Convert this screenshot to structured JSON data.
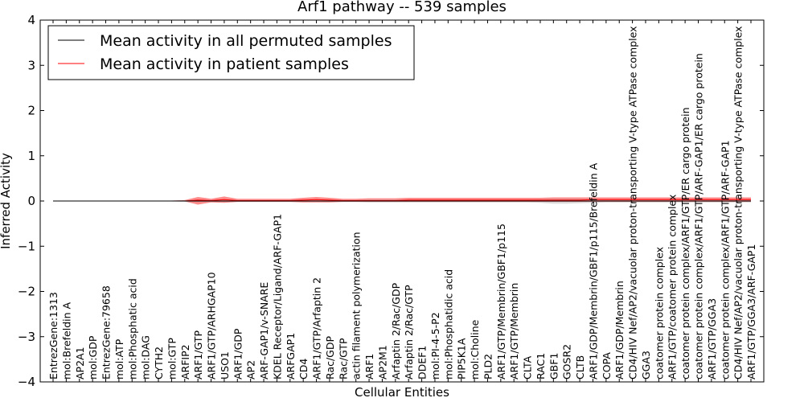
{
  "chart_data": {
    "type": "line",
    "title": "Arf1 pathway -- 539 samples",
    "xlabel": "Cellular Entities",
    "ylabel": "Inferred Activity",
    "ylim": [
      -4,
      4
    ],
    "yticks": [
      -4,
      -3,
      -2,
      -1,
      0,
      1,
      2,
      3,
      4
    ],
    "yticklabels": [
      "−4",
      "−3",
      "−2",
      "−1",
      "0",
      "1",
      "2",
      "3",
      "4"
    ],
    "grid": false,
    "legend_position": "top-left",
    "categories": [
      "EntrezGene:1313",
      "mol:Brefeldin A",
      "AP2A1",
      "mol:GDP",
      "EntrezGene:79658",
      "mol:ATP",
      "mol:Phosphatic acid",
      "mol:DAG",
      "CYTH2",
      "mol:GTP",
      "ARFIP2",
      "ARF1/GTP",
      "ARF1/GTP/ARHGAP10",
      "USO1",
      "ARF1/GDP",
      "AP2",
      "ARF-GAP1/v-SNARE",
      "KDEL Receptor/Ligand/ARF-GAP1",
      "ARFGAP1",
      "CD4",
      "ARF1/GTP/Arfaptin 2",
      "Rac/GDP",
      "Rac/GTP",
      "actin filament polymerization",
      "ARF1",
      "AP2M1",
      "Arfaptin 2/Rac/GDP",
      "Arfaptin 2/Rac/GTP",
      "DDEF1",
      "mol:PI-4-5-P2",
      "mol:Phosphatidic acid",
      "PIP5K1A",
      "mol:Choline",
      "PLD2",
      "ARF1/GTP/Membrin/GBF1/p115",
      "ARF1/GTP/Membrin",
      "CLTA",
      "RAC1",
      "GBF1",
      "GOSR2",
      "CLTB",
      "ARF1/GDP/Membrin/GBF1/p115/Brefeldin A",
      "COPA",
      "ARF1/GDP/Membrin",
      "CD4/HIV Nef/AP2/vacuolar proton-transporting V-type ATPase complex",
      "GGA3",
      "coatomer protein complex",
      "ARF1/GTP/coatomer protein complex",
      "coatomer protein complex/ARF1/GTP/ER cargo protein",
      "coatomer protein complex/ARF1/GTP/ARF-GAP1/ER cargo protein",
      "ARF1/GTP/GGA3",
      "coatomer protein complex/ARF1/GTP/ARF-GAP1",
      "CD4/HIV Nef/AP2/vacuolar proton-transporting V-type ATPase complex",
      "ARF1/GTP/GGA3/ARF-GAP1"
    ],
    "series": [
      {
        "name": "Mean activity in all permuted samples",
        "color": "#000000",
        "values": [
          0,
          0,
          0,
          0,
          0,
          0,
          0,
          0,
          0,
          0,
          0,
          0,
          0,
          0,
          0,
          0,
          0,
          0,
          0,
          0,
          0,
          0,
          0,
          0,
          0,
          0,
          0,
          0,
          0,
          0,
          0,
          0,
          0,
          0,
          0,
          0,
          0,
          0,
          0,
          0,
          0,
          0,
          0,
          0,
          0,
          0,
          0,
          0,
          0,
          0,
          0,
          0,
          0,
          0
        ],
        "band_lower": [
          -0.01,
          -0.01,
          -0.01,
          -0.01,
          -0.01,
          -0.01,
          -0.01,
          -0.01,
          -0.01,
          -0.01,
          -0.02,
          -0.02,
          -0.02,
          -0.02,
          -0.02,
          -0.02,
          -0.02,
          -0.02,
          -0.02,
          -0.02,
          -0.02,
          -0.02,
          -0.02,
          -0.02,
          -0.03,
          -0.03,
          -0.03,
          -0.03,
          -0.03,
          -0.03,
          -0.03,
          -0.03,
          -0.03,
          -0.03,
          -0.03,
          -0.03,
          -0.03,
          -0.04,
          -0.06,
          -0.06,
          -0.05,
          -0.04,
          -0.03,
          -0.03,
          -0.03,
          -0.03,
          -0.03,
          -0.03,
          -0.03,
          -0.03,
          -0.03,
          -0.03,
          -0.03,
          -0.03
        ],
        "band_upper": [
          0.01,
          0.01,
          0.01,
          0.01,
          0.01,
          0.01,
          0.01,
          0.01,
          0.01,
          0.01,
          0.02,
          0.02,
          0.02,
          0.02,
          0.02,
          0.02,
          0.02,
          0.02,
          0.02,
          0.02,
          0.02,
          0.02,
          0.02,
          0.02,
          0.03,
          0.03,
          0.03,
          0.03,
          0.03,
          0.03,
          0.03,
          0.03,
          0.03,
          0.03,
          0.03,
          0.03,
          0.03,
          0.04,
          0.05,
          0.05,
          0.05,
          0.04,
          0.03,
          0.03,
          0.03,
          0.03,
          0.03,
          0.03,
          0.03,
          0.03,
          0.03,
          0.03,
          0.03,
          0.03
        ]
      },
      {
        "name": "Mean activity in patient samples",
        "color": "#ff0000",
        "values": [
          0,
          0,
          0,
          0,
          0,
          0,
          0,
          0,
          0,
          0,
          0,
          0.02,
          0.01,
          0.03,
          0.01,
          0.01,
          0.01,
          0.01,
          0.01,
          0.02,
          0.03,
          0.02,
          0.01,
          0.01,
          0.01,
          0.01,
          0.01,
          0.02,
          0.02,
          0.02,
          0.02,
          0.02,
          0.02,
          0.02,
          0.02,
          0.02,
          0.02,
          0.02,
          0.02,
          0.02,
          0.02,
          0.03,
          0.03,
          0.03,
          0.03,
          0.03,
          0.03,
          0.03,
          0.03,
          0.03,
          0.03,
          0.03,
          0.03,
          0.03
        ],
        "band_lower": [
          -0.01,
          -0.01,
          -0.01,
          -0.01,
          -0.01,
          -0.01,
          -0.01,
          -0.01,
          -0.01,
          -0.01,
          -0.01,
          -0.08,
          -0.03,
          -0.04,
          -0.02,
          -0.02,
          -0.02,
          -0.02,
          -0.02,
          -0.03,
          -0.03,
          -0.03,
          -0.02,
          -0.02,
          -0.02,
          -0.02,
          -0.02,
          -0.02,
          -0.02,
          -0.02,
          -0.02,
          -0.02,
          -0.02,
          -0.02,
          -0.02,
          -0.02,
          -0.02,
          -0.02,
          -0.02,
          -0.02,
          -0.02,
          -0.02,
          -0.02,
          -0.02,
          -0.02,
          -0.02,
          -0.02,
          -0.02,
          -0.02,
          -0.02,
          -0.02,
          -0.02,
          -0.02,
          -0.02
        ],
        "band_upper": [
          0.01,
          0.01,
          0.01,
          0.01,
          0.01,
          0.01,
          0.01,
          0.01,
          0.01,
          0.01,
          0.02,
          0.09,
          0.05,
          0.1,
          0.05,
          0.05,
          0.05,
          0.05,
          0.05,
          0.07,
          0.09,
          0.07,
          0.05,
          0.05,
          0.06,
          0.06,
          0.06,
          0.07,
          0.07,
          0.07,
          0.07,
          0.07,
          0.07,
          0.07,
          0.07,
          0.07,
          0.07,
          0.07,
          0.08,
          0.08,
          0.08,
          0.08,
          0.08,
          0.08,
          0.08,
          0.08,
          0.08,
          0.08,
          0.08,
          0.08,
          0.08,
          0.08,
          0.08,
          0.08
        ]
      }
    ]
  }
}
